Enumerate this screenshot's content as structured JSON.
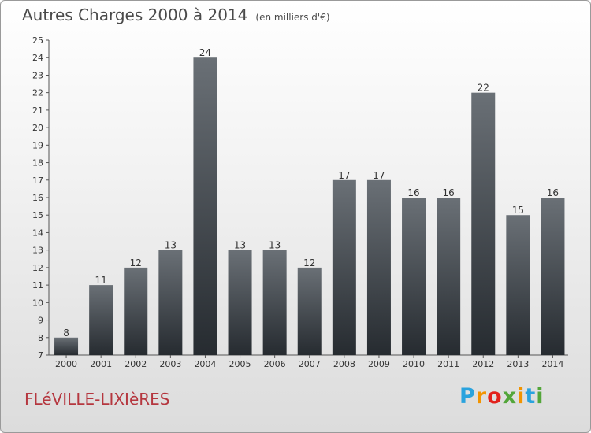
{
  "title": "Autres Charges 2000 à 2014",
  "unit": "(en milliers d'€)",
  "city": "FLéVILLE-LIXIèRES",
  "logo": {
    "letters": [
      "P",
      "r",
      "o",
      "x",
      "i",
      "t",
      "i"
    ],
    "colors": [
      "#2aa3de",
      "#f29400",
      "#e2221c",
      "#53a63a",
      "#f29400",
      "#2aa3de",
      "#53a63a"
    ]
  },
  "chart_data": {
    "type": "bar",
    "title": "Autres Charges 2000 à 2014",
    "xlabel": "",
    "ylabel": "",
    "categories": [
      "2000",
      "2001",
      "2002",
      "2003",
      "2004",
      "2005",
      "2006",
      "2007",
      "2008",
      "2009",
      "2010",
      "2011",
      "2012",
      "2013",
      "2014"
    ],
    "values": [
      8,
      11,
      12,
      13,
      24,
      13,
      13,
      12,
      17,
      17,
      16,
      16,
      22,
      15,
      16
    ],
    "ylim": [
      7,
      25
    ],
    "yticks": [
      7,
      8,
      9,
      10,
      11,
      12,
      13,
      14,
      15,
      16,
      17,
      18,
      19,
      20,
      21,
      22,
      23,
      24,
      25
    ],
    "grid": false,
    "bar_color": "#3d4247"
  }
}
